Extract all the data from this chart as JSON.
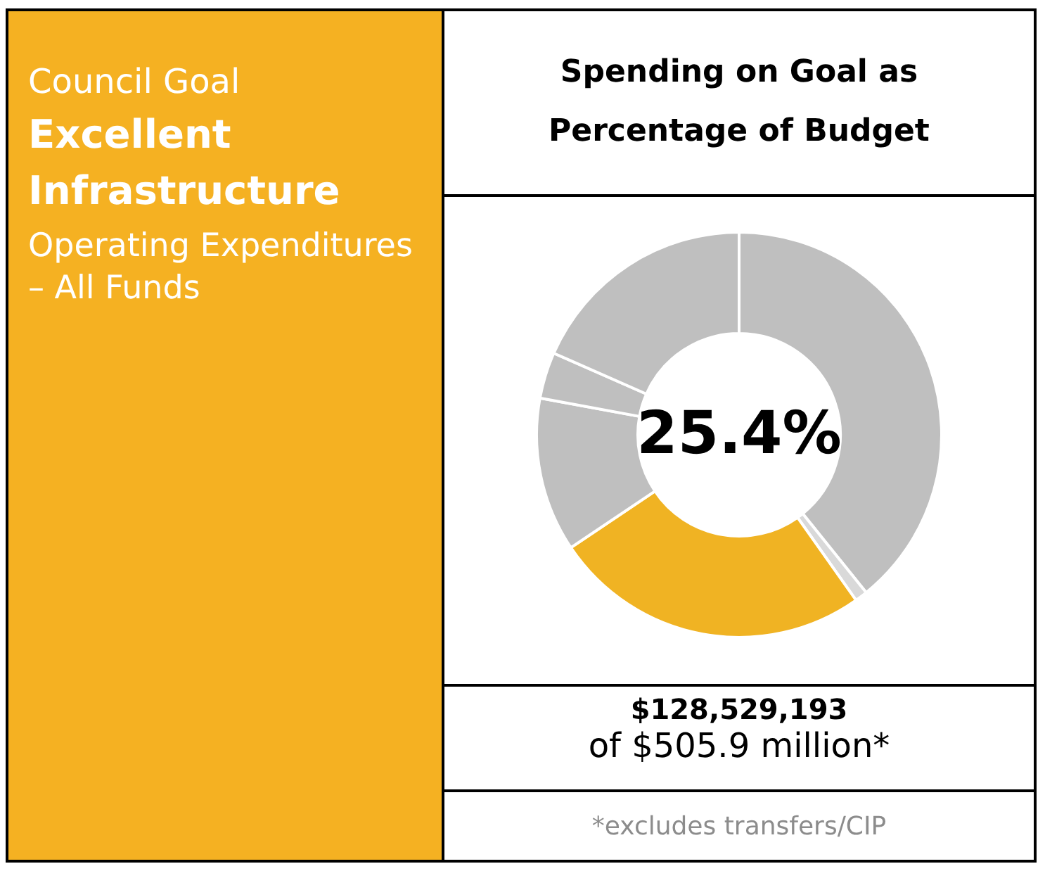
{
  "chart_data": {
    "type": "donut",
    "title": "Spending on Goal as Percentage of Budget",
    "categories": [
      null,
      null,
      null,
      null,
      null,
      null
    ],
    "values": [
      39.2,
      1,
      25.4,
      12.3,
      3.7,
      18.4
    ],
    "colors": [
      "#bfbfbf",
      "#d9d9d9",
      "#f0b323",
      "#bfbfbf",
      "#bfbfbf",
      "#bfbfbf"
    ],
    "annotations": [
      "25.4%",
      "Council Goal",
      "Excellent Infrastructure",
      "Operating Expenditures – All Funds",
      "$128,529,193",
      "of $505.9 million*",
      "*excludes transfers/CIP"
    ]
  }
}
